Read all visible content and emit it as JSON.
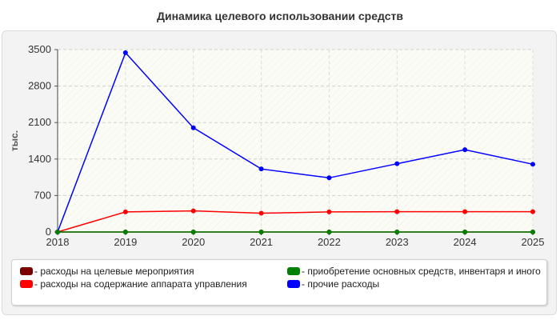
{
  "title": "Динамика целевого использовании средств",
  "chart_data": {
    "type": "line",
    "title": "Динамика целевого использовании средств",
    "xlabel": "",
    "ylabel": "тыс.",
    "x": [
      "2018",
      "2019",
      "2020",
      "2021",
      "2022",
      "2023",
      "2024",
      "2025"
    ],
    "ylim": [
      0,
      3500
    ],
    "yticks": [
      0,
      700,
      1400,
      2100,
      2800,
      3500
    ],
    "grid": true,
    "legend_position": "bottom",
    "series": [
      {
        "name": "- расходы на целевые мероприятия",
        "color": "#7a0000",
        "values": [
          0,
          0,
          0,
          0,
          0,
          0,
          0,
          0
        ]
      },
      {
        "name": "- расходы на содержание аппарата управления",
        "color": "#ff0000",
        "values": [
          0,
          385,
          405,
          360,
          385,
          390,
          390,
          390
        ]
      },
      {
        "name": "- приобретение основных средств, инвентаря и иного",
        "color": "#008000",
        "values": [
          0,
          0,
          0,
          0,
          0,
          0,
          0,
          0
        ]
      },
      {
        "name": "- прочие расходы",
        "color": "#0000ff",
        "values": [
          0,
          3440,
          2000,
          1210,
          1040,
          1310,
          1580,
          1300
        ]
      }
    ]
  }
}
